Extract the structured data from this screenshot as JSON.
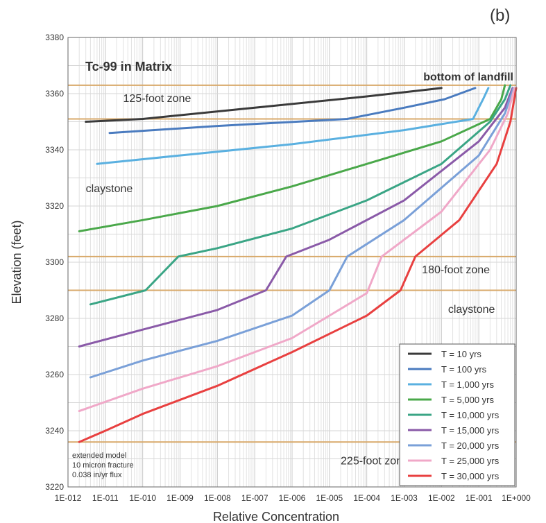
{
  "panel_label": "(b)",
  "chart_data": {
    "type": "line",
    "title": "Tc-99 in Matrix",
    "xlabel": "Relative Concentration",
    "ylabel": "Elevation (feet)",
    "x_scale": "log",
    "xlim": [
      1e-12,
      1
    ],
    "ylim": [
      3220,
      3380
    ],
    "grid": true,
    "legend_position": "bottom-right",
    "x_ticks": [
      "1E-012",
      "1E-011",
      "1E-010",
      "1E-009",
      "1E-008",
      "1E-007",
      "1E-006",
      "1E-005",
      "1E-004",
      "1E-003",
      "1E-002",
      "1E-001",
      "1E+000"
    ],
    "y_ticks": [
      3220,
      3240,
      3260,
      3280,
      3300,
      3320,
      3340,
      3360,
      3380
    ],
    "horizontal_lines": [
      {
        "y": 3363,
        "label": "bottom of landfill"
      },
      {
        "y": 3351,
        "label": ""
      },
      {
        "y": 3302,
        "label": ""
      },
      {
        "y": 3290,
        "label": ""
      },
      {
        "y": 3236,
        "label": ""
      }
    ],
    "annotations": [
      {
        "text": "125-foot zone",
        "x": 3e-11,
        "y": 3357
      },
      {
        "text": "claystone",
        "x": 3e-12,
        "y": 3325
      },
      {
        "text": "180-foot zone",
        "x": 0.003,
        "y": 3296
      },
      {
        "text": "claystone",
        "x": 0.015,
        "y": 3282
      },
      {
        "text": "225-foot zone",
        "x": 2e-05,
        "y": 3228
      }
    ],
    "note": [
      "extended model",
      "10 micron fracture",
      "0.038 in/yr flux"
    ],
    "series": [
      {
        "name": "T = 10 yrs",
        "color": "#3a3a3a",
        "points": [
          [
            3e-12,
            3350
          ],
          [
            1e-10,
            3351
          ],
          [
            1e-07,
            3355
          ],
          [
            0.0001,
            3359
          ],
          [
            0.01,
            3362
          ]
        ]
      },
      {
        "name": "T = 100 yrs",
        "color": "#4a7bbf",
        "points": [
          [
            1.3e-11,
            3346
          ],
          [
            1e-08,
            3348.5
          ],
          [
            3e-05,
            3351
          ],
          [
            0.001,
            3355
          ],
          [
            0.012,
            3358
          ],
          [
            0.08,
            3362
          ]
        ]
      },
      {
        "name": "T = 1,000 yrs",
        "color": "#5ab0e0",
        "points": [
          [
            6e-12,
            3335
          ],
          [
            1e-09,
            3338
          ],
          [
            1e-06,
            3342
          ],
          [
            0.001,
            3347
          ],
          [
            0.07,
            3351
          ],
          [
            0.13,
            3358
          ],
          [
            0.18,
            3362
          ]
        ]
      },
      {
        "name": "T = 5,000 yrs",
        "color": "#4aa84a",
        "points": [
          [
            2e-12,
            3311
          ],
          [
            1e-10,
            3315
          ],
          [
            1e-08,
            3320
          ],
          [
            1e-06,
            3327
          ],
          [
            0.0001,
            3335
          ],
          [
            0.01,
            3343
          ],
          [
            0.2,
            3351
          ],
          [
            0.4,
            3358
          ],
          [
            0.5,
            3363
          ]
        ]
      },
      {
        "name": "T = 10,000 yrs",
        "color": "#3aa585",
        "points": [
          [
            4e-12,
            3285
          ],
          [
            1.2e-10,
            3290
          ],
          [
            9e-10,
            3302
          ],
          [
            1e-08,
            3305
          ],
          [
            1e-06,
            3312
          ],
          [
            0.0001,
            3322
          ],
          [
            0.01,
            3335
          ],
          [
            0.2,
            3350
          ],
          [
            0.5,
            3358
          ],
          [
            0.7,
            3363
          ]
        ]
      },
      {
        "name": "T = 15,000 yrs",
        "color": "#8a5aa8",
        "points": [
          [
            2e-12,
            3270
          ],
          [
            1e-10,
            3276
          ],
          [
            1e-08,
            3283
          ],
          [
            2e-07,
            3290
          ],
          [
            7e-07,
            3302
          ],
          [
            1e-05,
            3308
          ],
          [
            0.001,
            3322
          ],
          [
            0.1,
            3343
          ],
          [
            0.5,
            3355
          ],
          [
            0.8,
            3362
          ]
        ]
      },
      {
        "name": "T = 20,000 yrs",
        "color": "#7aa0d8",
        "points": [
          [
            4e-12,
            3259
          ],
          [
            1e-10,
            3265
          ],
          [
            1e-08,
            3272
          ],
          [
            1e-06,
            3281
          ],
          [
            1e-05,
            3290
          ],
          [
            3e-05,
            3302
          ],
          [
            0.001,
            3315
          ],
          [
            0.1,
            3338
          ],
          [
            0.5,
            3353
          ],
          [
            0.85,
            3362
          ]
        ]
      },
      {
        "name": "T = 25,000 yrs",
        "color": "#f0a8c8",
        "points": [
          [
            2e-12,
            3247
          ],
          [
            1e-10,
            3255
          ],
          [
            1e-08,
            3263
          ],
          [
            1e-06,
            3273
          ],
          [
            0.0001,
            3289
          ],
          [
            0.00025,
            3302
          ],
          [
            0.01,
            3318
          ],
          [
            0.2,
            3340
          ],
          [
            0.6,
            3353
          ],
          [
            0.9,
            3362
          ]
        ]
      },
      {
        "name": "T = 30,000 yrs",
        "color": "#e84040",
        "points": [
          [
            2e-12,
            3236
          ],
          [
            1e-11,
            3240
          ],
          [
            1e-10,
            3246
          ],
          [
            1e-08,
            3256
          ],
          [
            1e-06,
            3268
          ],
          [
            0.0001,
            3281
          ],
          [
            0.0008,
            3290
          ],
          [
            0.002,
            3302
          ],
          [
            0.03,
            3315
          ],
          [
            0.3,
            3335
          ],
          [
            0.7,
            3350
          ],
          [
            1,
            3362
          ]
        ]
      }
    ]
  }
}
